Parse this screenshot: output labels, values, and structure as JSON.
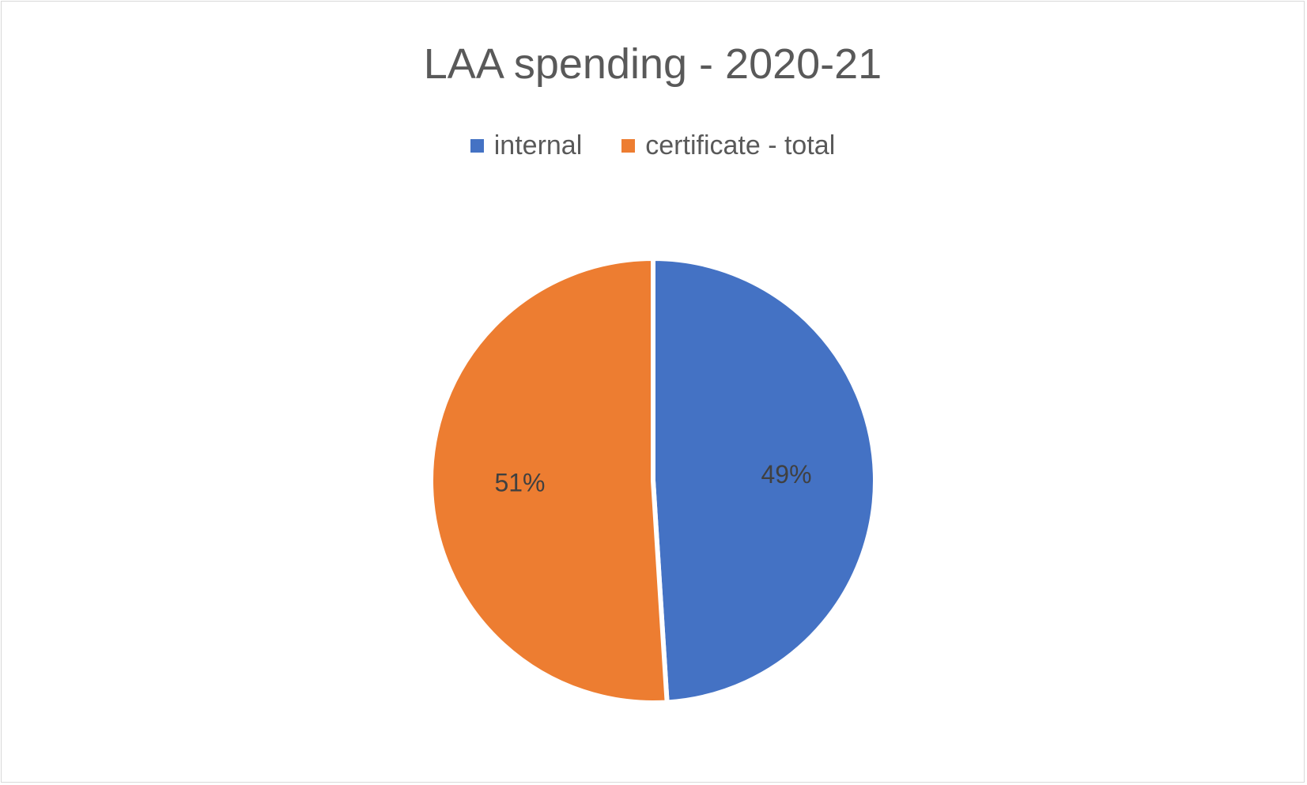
{
  "chart_data": {
    "type": "pie",
    "title": "LAA spending - 2020-21",
    "legend_position": "top",
    "slices": [
      {
        "name": "internal",
        "value": 49,
        "label": "49%",
        "color": "#4472c4"
      },
      {
        "name": "certificate - total",
        "value": 51,
        "label": "51%",
        "color": "#ed7d31"
      }
    ]
  }
}
